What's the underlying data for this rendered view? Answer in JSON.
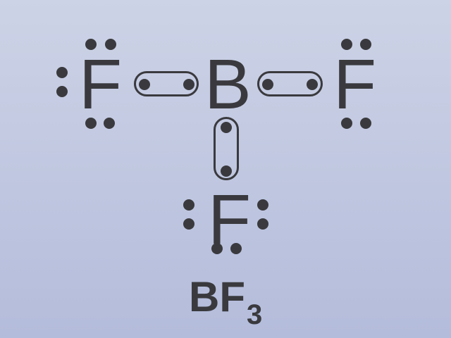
{
  "molecule": {
    "central_atom": "B",
    "ligand_atom": "F",
    "formula_main": "BF",
    "formula_subscript": "3"
  },
  "colors": {
    "ink": "#3a3a3e",
    "background_top": "#cdd3e6",
    "background_bottom": "#b4bcdb"
  }
}
